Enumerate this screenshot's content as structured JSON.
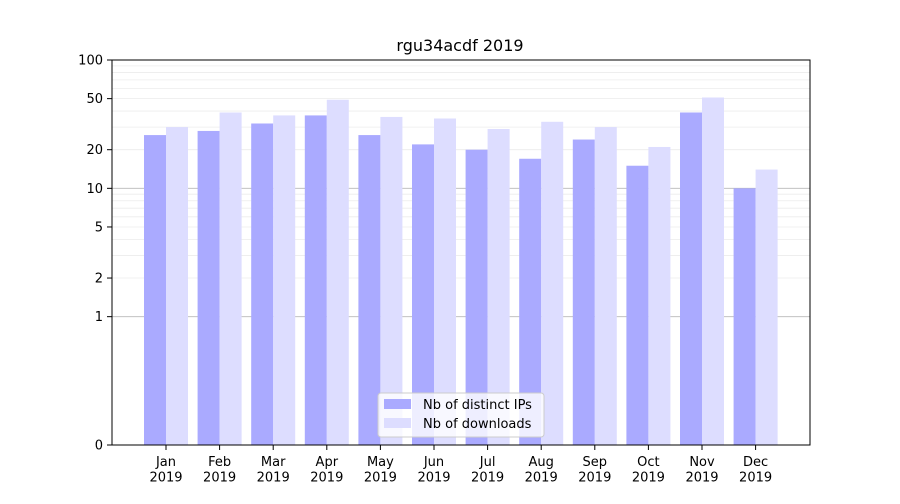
{
  "chart_data": {
    "type": "bar",
    "title": "rgu34acdf 2019",
    "xlabel": "",
    "ylabel": "",
    "yscale": "symlog",
    "ylim": [
      0,
      100
    ],
    "yticks": [
      0,
      1,
      2,
      5,
      10,
      20,
      50,
      100
    ],
    "ytick_labels": [
      "0",
      "1",
      "2",
      "5",
      "10",
      "20",
      "50",
      "100"
    ],
    "categories": [
      "Jan\n2019",
      "Feb\n2019",
      "Mar\n2019",
      "Apr\n2019",
      "May\n2019",
      "Jun\n2019",
      "Jul\n2019",
      "Aug\n2019",
      "Sep\n2019",
      "Oct\n2019",
      "Nov\n2019",
      "Dec\n2019"
    ],
    "series": [
      {
        "name": "Nb of distinct IPs",
        "color": "#aaaaff",
        "values": [
          26,
          28,
          32,
          37,
          26,
          22,
          20,
          17,
          24,
          15,
          39,
          10
        ]
      },
      {
        "name": "Nb of downloads",
        "color": "#ddddff",
        "values": [
          30,
          39,
          37,
          49,
          36,
          35,
          29,
          33,
          30,
          21,
          51,
          14
        ]
      }
    ],
    "grid": true,
    "legend_position": "bottom-center"
  }
}
